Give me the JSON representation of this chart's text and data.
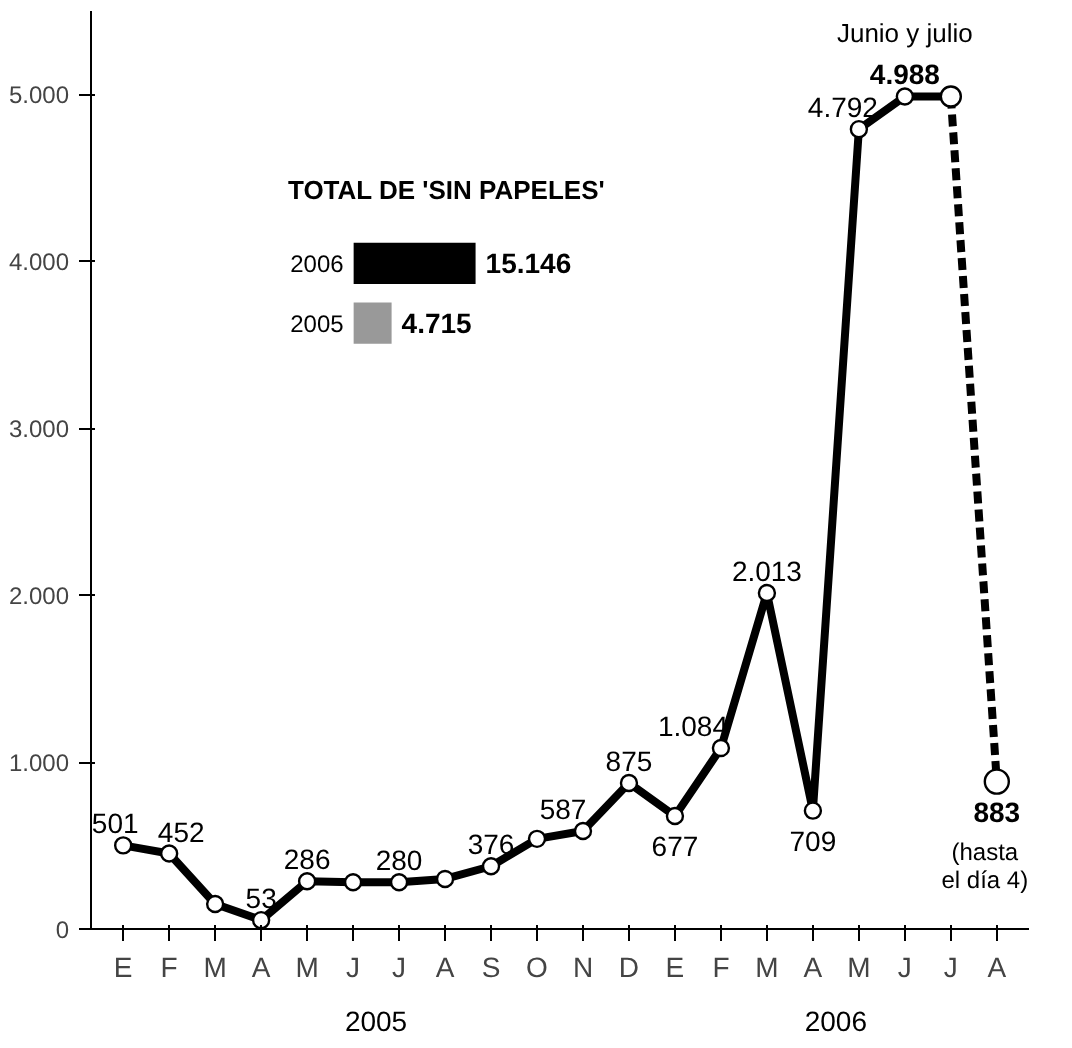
{
  "chart_data": [
    {
      "type": "line",
      "categories": [
        "E",
        "F",
        "M",
        "A",
        "M",
        "J",
        "J",
        "A",
        "S",
        "O",
        "N",
        "D",
        "E",
        "F",
        "M",
        "A",
        "M",
        "J",
        "J",
        "A"
      ],
      "series": [
        {
          "color": "#000000",
          "line_style": "solid",
          "values": [
            501,
            452,
            150,
            53,
            286,
            280,
            280,
            300,
            376,
            540,
            587,
            875,
            677,
            1084,
            2013,
            709,
            4792,
            4988,
            4988,
            null
          ],
          "value_labels": [
            "501",
            "452",
            null,
            "53",
            "286",
            null,
            "280",
            null,
            "376",
            null,
            "587",
            "875",
            "677",
            "1.084",
            "2.013",
            "709",
            "4.792",
            "4.988",
            null,
            null
          ]
        },
        {
          "color": "#000000",
          "line_style": "dashed",
          "values": [
            null,
            null,
            null,
            null,
            null,
            null,
            null,
            null,
            null,
            null,
            null,
            null,
            null,
            null,
            null,
            null,
            null,
            null,
            4988,
            883
          ],
          "value_labels": [
            null,
            null,
            null,
            null,
            null,
            null,
            null,
            null,
            null,
            null,
            null,
            null,
            null,
            null,
            null,
            null,
            null,
            null,
            null,
            "883"
          ]
        }
      ],
      "marker": "circle",
      "ylim": [
        0,
        5500
      ],
      "yticks": [
        0,
        {
          "value": 1000,
          "label": "1.000"
        },
        {
          "value": 2000,
          "label": "2.000"
        },
        {
          "value": 3000,
          "label": "3.000"
        },
        {
          "value": 4000,
          "label": "4.000"
        },
        {
          "value": 5000,
          "label": "5.000"
        }
      ],
      "grid": false,
      "annotations": [
        "Junio y julio",
        "(hasta el día 4)",
        "2005",
        "2006"
      ]
    },
    {
      "type": "bar",
      "orientation": "horizontal",
      "title": "TOTAL DE 'SIN PAPELES'",
      "categories": [
        "2006",
        "2005"
      ],
      "values": [
        15146,
        4715
      ],
      "colors": [
        "#000000",
        "#999999"
      ],
      "value_labels": [
        "15.146",
        "4.715"
      ]
    }
  ]
}
